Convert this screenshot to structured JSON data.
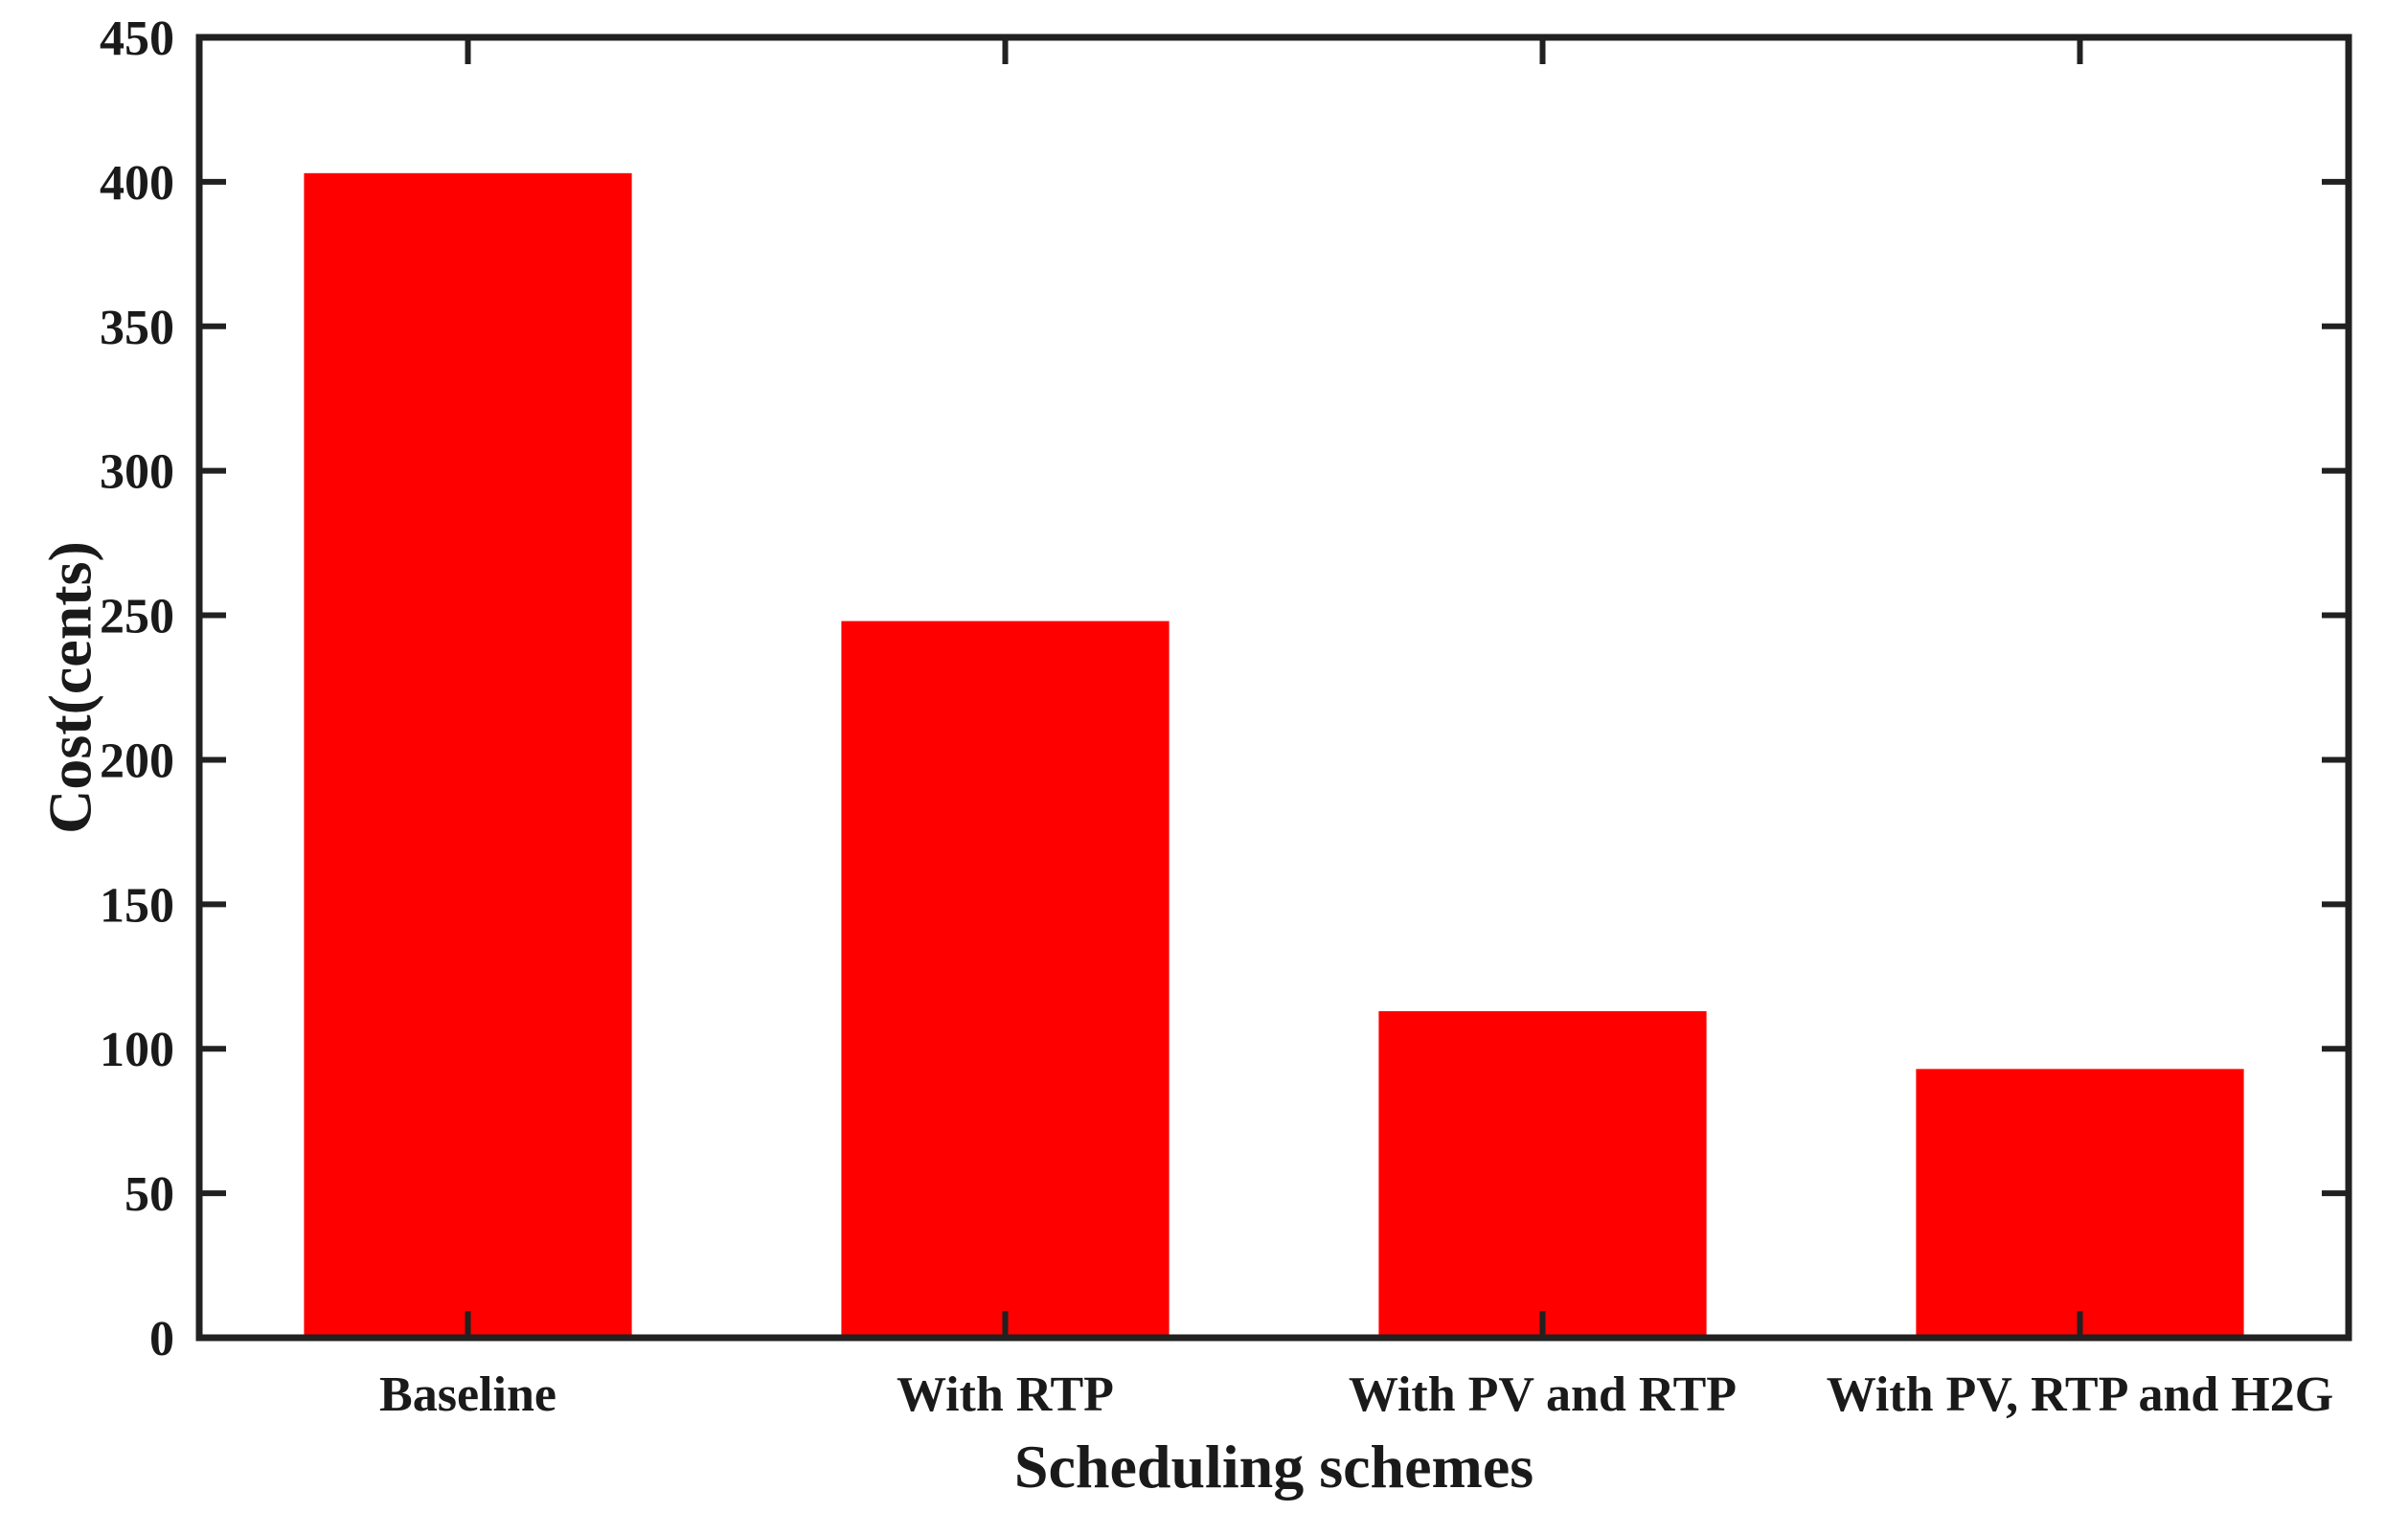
{
  "chart_data": {
    "type": "bar",
    "title": "",
    "categories": [
      "Baseline",
      "With RTP",
      "With PV and RTP",
      "With PV, RTP and H2G"
    ],
    "values": [
      403,
      248,
      113,
      93
    ],
    "xlabel": "Scheduling schemes",
    "ylabel": "Cost(cents)",
    "ylim": [
      0,
      450
    ],
    "yticks": [
      0,
      50,
      100,
      150,
      200,
      250,
      300,
      350,
      400,
      450
    ],
    "grid": false,
    "legend": null,
    "bar_color": "#ff0000",
    "axis_color": "#212121",
    "text_color": "#1a1a1a",
    "bar_width_fraction": 0.61,
    "box": "on",
    "tick_direction": "in"
  }
}
